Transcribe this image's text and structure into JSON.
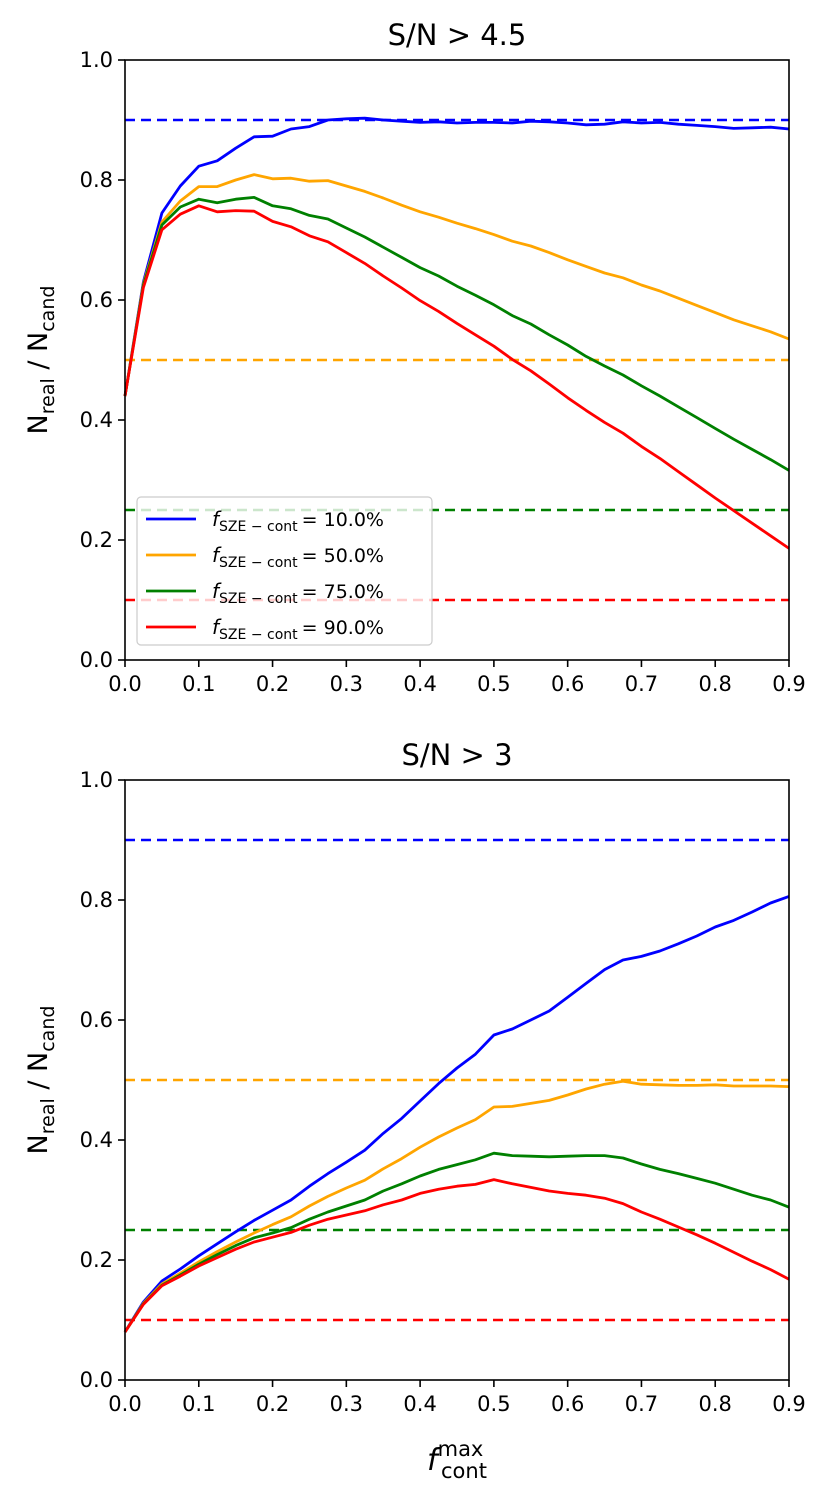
{
  "colors": {
    "blue": "#0000ff",
    "orange": "#ffa500",
    "green": "#008000",
    "red": "#ff0000"
  },
  "xlabel": {
    "main": "f",
    "sup": "max",
    "sub": "cont"
  },
  "legend_entries": [
    {
      "f": "f",
      "sub": "SZE − cont",
      "text": "= 10.0%",
      "color": "blue"
    },
    {
      "f": "f",
      "sub": "SZE − cont",
      "text": "= 50.0%",
      "color": "orange"
    },
    {
      "f": "f",
      "sub": "SZE − cont",
      "text": "= 75.0%",
      "color": "green"
    },
    {
      "f": "f",
      "sub": "SZE − cont",
      "text": "= 90.0%",
      "color": "red"
    }
  ],
  "chart_data": [
    {
      "type": "line",
      "title": "S/N > 4.5",
      "ylabel": {
        "main": "N",
        "sub1": "real",
        "mid": " / N",
        "sub2": "cand"
      },
      "xlim": [
        0,
        0.9
      ],
      "ylim": [
        0,
        1.0
      ],
      "xticks": [
        "0.0",
        "0.1",
        "0.2",
        "0.3",
        "0.4",
        "0.5",
        "0.6",
        "0.7",
        "0.8",
        "0.9"
      ],
      "yticks": [
        "0.0",
        "0.2",
        "0.4",
        "0.6",
        "0.8",
        "1.0"
      ],
      "legend": "lower-left",
      "x": [
        0,
        0.025,
        0.05,
        0.075,
        0.1,
        0.125,
        0.15,
        0.175,
        0.2,
        0.225,
        0.25,
        0.275,
        0.3,
        0.325,
        0.35,
        0.375,
        0.4,
        0.425,
        0.45,
        0.475,
        0.5,
        0.525,
        0.55,
        0.575,
        0.6,
        0.625,
        0.65,
        0.675,
        0.7,
        0.725,
        0.75,
        0.775,
        0.8,
        0.825,
        0.85,
        0.875,
        0.9
      ],
      "reference_lines": [
        {
          "y": 0.9,
          "color": "blue",
          "style": "dashed"
        },
        {
          "y": 0.5,
          "color": "orange",
          "style": "dashed"
        },
        {
          "y": 0.25,
          "color": "green",
          "style": "dashed"
        },
        {
          "y": 0.1,
          "color": "red",
          "style": "dashed"
        }
      ],
      "series": [
        {
          "name": "f_SZE-cont = 10.0%",
          "color": "blue",
          "values": [
            0.44,
            0.63,
            0.745,
            0.79,
            0.823,
            0.832,
            0.853,
            0.872,
            0.873,
            0.885,
            0.889,
            0.9,
            0.902,
            0.903,
            0.9,
            0.898,
            0.896,
            0.897,
            0.895,
            0.896,
            0.896,
            0.895,
            0.898,
            0.897,
            0.895,
            0.892,
            0.893,
            0.897,
            0.895,
            0.896,
            0.893,
            0.891,
            0.889,
            0.886,
            0.887,
            0.888,
            0.885
          ]
        },
        {
          "name": "f_SZE-cont = 50.0%",
          "color": "orange",
          "values": [
            0.44,
            0.627,
            0.73,
            0.765,
            0.789,
            0.789,
            0.8,
            0.809,
            0.802,
            0.803,
            0.798,
            0.799,
            0.79,
            0.781,
            0.77,
            0.758,
            0.747,
            0.738,
            0.728,
            0.719,
            0.709,
            0.698,
            0.69,
            0.679,
            0.667,
            0.656,
            0.645,
            0.637,
            0.625,
            0.615,
            0.603,
            0.591,
            0.579,
            0.567,
            0.557,
            0.547,
            0.535
          ]
        },
        {
          "name": "f_SZE-cont = 75.0%",
          "color": "green",
          "values": [
            0.44,
            0.625,
            0.725,
            0.755,
            0.768,
            0.762,
            0.768,
            0.771,
            0.757,
            0.752,
            0.741,
            0.735,
            0.72,
            0.705,
            0.688,
            0.671,
            0.654,
            0.64,
            0.623,
            0.608,
            0.592,
            0.574,
            0.56,
            0.542,
            0.525,
            0.506,
            0.49,
            0.475,
            0.457,
            0.44,
            0.422,
            0.404,
            0.386,
            0.368,
            0.351,
            0.334,
            0.316
          ]
        },
        {
          "name": "f_SZE-cont = 90.0%",
          "color": "red",
          "values": [
            0.44,
            0.621,
            0.717,
            0.743,
            0.757,
            0.747,
            0.749,
            0.748,
            0.731,
            0.722,
            0.707,
            0.697,
            0.679,
            0.661,
            0.64,
            0.62,
            0.599,
            0.581,
            0.561,
            0.542,
            0.523,
            0.501,
            0.482,
            0.46,
            0.437,
            0.416,
            0.396,
            0.378,
            0.356,
            0.336,
            0.314,
            0.292,
            0.27,
            0.249,
            0.228,
            0.207,
            0.186
          ]
        }
      ]
    },
    {
      "type": "line",
      "title": "S/N > 3",
      "ylabel": {
        "main": "N",
        "sub1": "real",
        "mid": " / N",
        "sub2": "cand"
      },
      "xlim": [
        0,
        0.9
      ],
      "ylim": [
        0,
        1.0
      ],
      "xticks": [
        "0.0",
        "0.1",
        "0.2",
        "0.3",
        "0.4",
        "0.5",
        "0.6",
        "0.7",
        "0.8",
        "0.9"
      ],
      "yticks": [
        "0.0",
        "0.2",
        "0.4",
        "0.6",
        "0.8",
        "1.0"
      ],
      "x": [
        0,
        0.025,
        0.05,
        0.075,
        0.1,
        0.125,
        0.15,
        0.175,
        0.2,
        0.225,
        0.25,
        0.275,
        0.3,
        0.325,
        0.35,
        0.375,
        0.4,
        0.425,
        0.45,
        0.475,
        0.5,
        0.525,
        0.55,
        0.575,
        0.6,
        0.625,
        0.65,
        0.675,
        0.7,
        0.725,
        0.75,
        0.775,
        0.8,
        0.825,
        0.85,
        0.875,
        0.9
      ],
      "reference_lines": [
        {
          "y": 0.9,
          "color": "blue",
          "style": "dashed"
        },
        {
          "y": 0.5,
          "color": "orange",
          "style": "dashed"
        },
        {
          "y": 0.25,
          "color": "green",
          "style": "dashed"
        },
        {
          "y": 0.1,
          "color": "red",
          "style": "dashed"
        }
      ],
      "series": [
        {
          "name": "f_SZE-cont = 10.0%",
          "color": "blue",
          "values": [
            0.08,
            0.13,
            0.165,
            0.185,
            0.207,
            0.227,
            0.247,
            0.266,
            0.283,
            0.3,
            0.323,
            0.344,
            0.363,
            0.383,
            0.411,
            0.436,
            0.465,
            0.494,
            0.52,
            0.543,
            0.575,
            0.585,
            0.6,
            0.615,
            0.638,
            0.661,
            0.684,
            0.7,
            0.706,
            0.715,
            0.727,
            0.74,
            0.755,
            0.766,
            0.78,
            0.795,
            0.806
          ]
        },
        {
          "name": "f_SZE-cont = 50.0%",
          "color": "orange",
          "values": [
            0.08,
            0.128,
            0.16,
            0.178,
            0.197,
            0.214,
            0.23,
            0.245,
            0.259,
            0.272,
            0.29,
            0.306,
            0.32,
            0.333,
            0.352,
            0.369,
            0.388,
            0.405,
            0.42,
            0.434,
            0.455,
            0.456,
            0.461,
            0.466,
            0.475,
            0.485,
            0.493,
            0.498,
            0.493,
            0.492,
            0.491,
            0.491,
            0.492,
            0.49,
            0.49,
            0.49,
            0.489
          ]
        },
        {
          "name": "f_SZE-cont = 75.0%",
          "color": "green",
          "values": [
            0.08,
            0.127,
            0.158,
            0.175,
            0.193,
            0.209,
            0.224,
            0.237,
            0.245,
            0.254,
            0.268,
            0.28,
            0.29,
            0.3,
            0.315,
            0.327,
            0.34,
            0.351,
            0.359,
            0.367,
            0.378,
            0.374,
            0.373,
            0.372,
            0.373,
            0.374,
            0.374,
            0.37,
            0.36,
            0.351,
            0.344,
            0.336,
            0.328,
            0.318,
            0.308,
            0.3,
            0.288
          ]
        },
        {
          "name": "f_SZE-cont = 90.0%",
          "color": "red",
          "values": [
            0.08,
            0.126,
            0.157,
            0.173,
            0.19,
            0.204,
            0.218,
            0.23,
            0.238,
            0.246,
            0.258,
            0.268,
            0.275,
            0.282,
            0.292,
            0.3,
            0.311,
            0.318,
            0.323,
            0.326,
            0.334,
            0.327,
            0.321,
            0.315,
            0.311,
            0.308,
            0.303,
            0.294,
            0.28,
            0.268,
            0.255,
            0.242,
            0.228,
            0.213,
            0.198,
            0.184,
            0.168
          ]
        }
      ]
    }
  ]
}
